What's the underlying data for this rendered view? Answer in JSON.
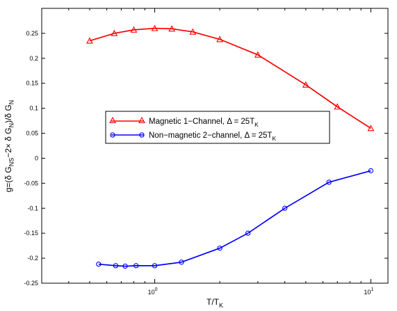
{
  "chart_data": {
    "type": "line",
    "title": "",
    "xlabel": "T/T",
    "xlabel_sub": "K",
    "ylabel": "g=(δ G",
    "ylabel_parts": {
      "p1": "g=(δ G",
      "sub1": "NS",
      "p2": "−2× δ G",
      "sub2": "N",
      "p3": ")/δ G",
      "sub3": "N"
    },
    "x_scale": "log",
    "xlim": [
      0.3,
      12
    ],
    "ylim": [
      -0.25,
      0.3
    ],
    "grid": false,
    "legend_position": "center-left",
    "x_ticks": [
      {
        "value": 1,
        "base": "10",
        "exp": "0"
      },
      {
        "value": 10,
        "base": "10",
        "exp": "1"
      }
    ],
    "y_ticks": [
      -0.25,
      -0.2,
      -0.15,
      -0.1,
      -0.05,
      0,
      0.05,
      0.1,
      0.15,
      0.2,
      0.25
    ],
    "y_tick_labels": [
      "-0.25",
      "-0.2",
      "-0.15",
      "-0.1",
      "-0.05",
      "0",
      "0.05",
      "0.1",
      "0.15",
      "0.2",
      "0.25"
    ],
    "series": [
      {
        "name": "Magnetic 1−Channel, Δ = 25T",
        "name_sub": "K",
        "color": "#ff0000",
        "marker": "triangle",
        "x": [
          0.5,
          0.65,
          0.8,
          1.0,
          1.2,
          1.5,
          2.0,
          3.0,
          5.0,
          7.0,
          10.0
        ],
        "y": [
          0.235,
          0.25,
          0.257,
          0.26,
          0.259,
          0.253,
          0.238,
          0.207,
          0.147,
          0.103,
          0.06
        ]
      },
      {
        "name": "Non−magnetic 2−channel, Δ = 25T",
        "name_sub": "K",
        "color": "#0000ff",
        "marker": "circle",
        "x": [
          0.55,
          0.66,
          0.73,
          0.82,
          1.0,
          1.33,
          2.0,
          2.7,
          4.0,
          6.4,
          10.0
        ],
        "y": [
          -0.212,
          -0.215,
          -0.216,
          -0.215,
          -0.215,
          -0.208,
          -0.18,
          -0.15,
          -0.1,
          -0.048,
          -0.025
        ]
      }
    ]
  }
}
